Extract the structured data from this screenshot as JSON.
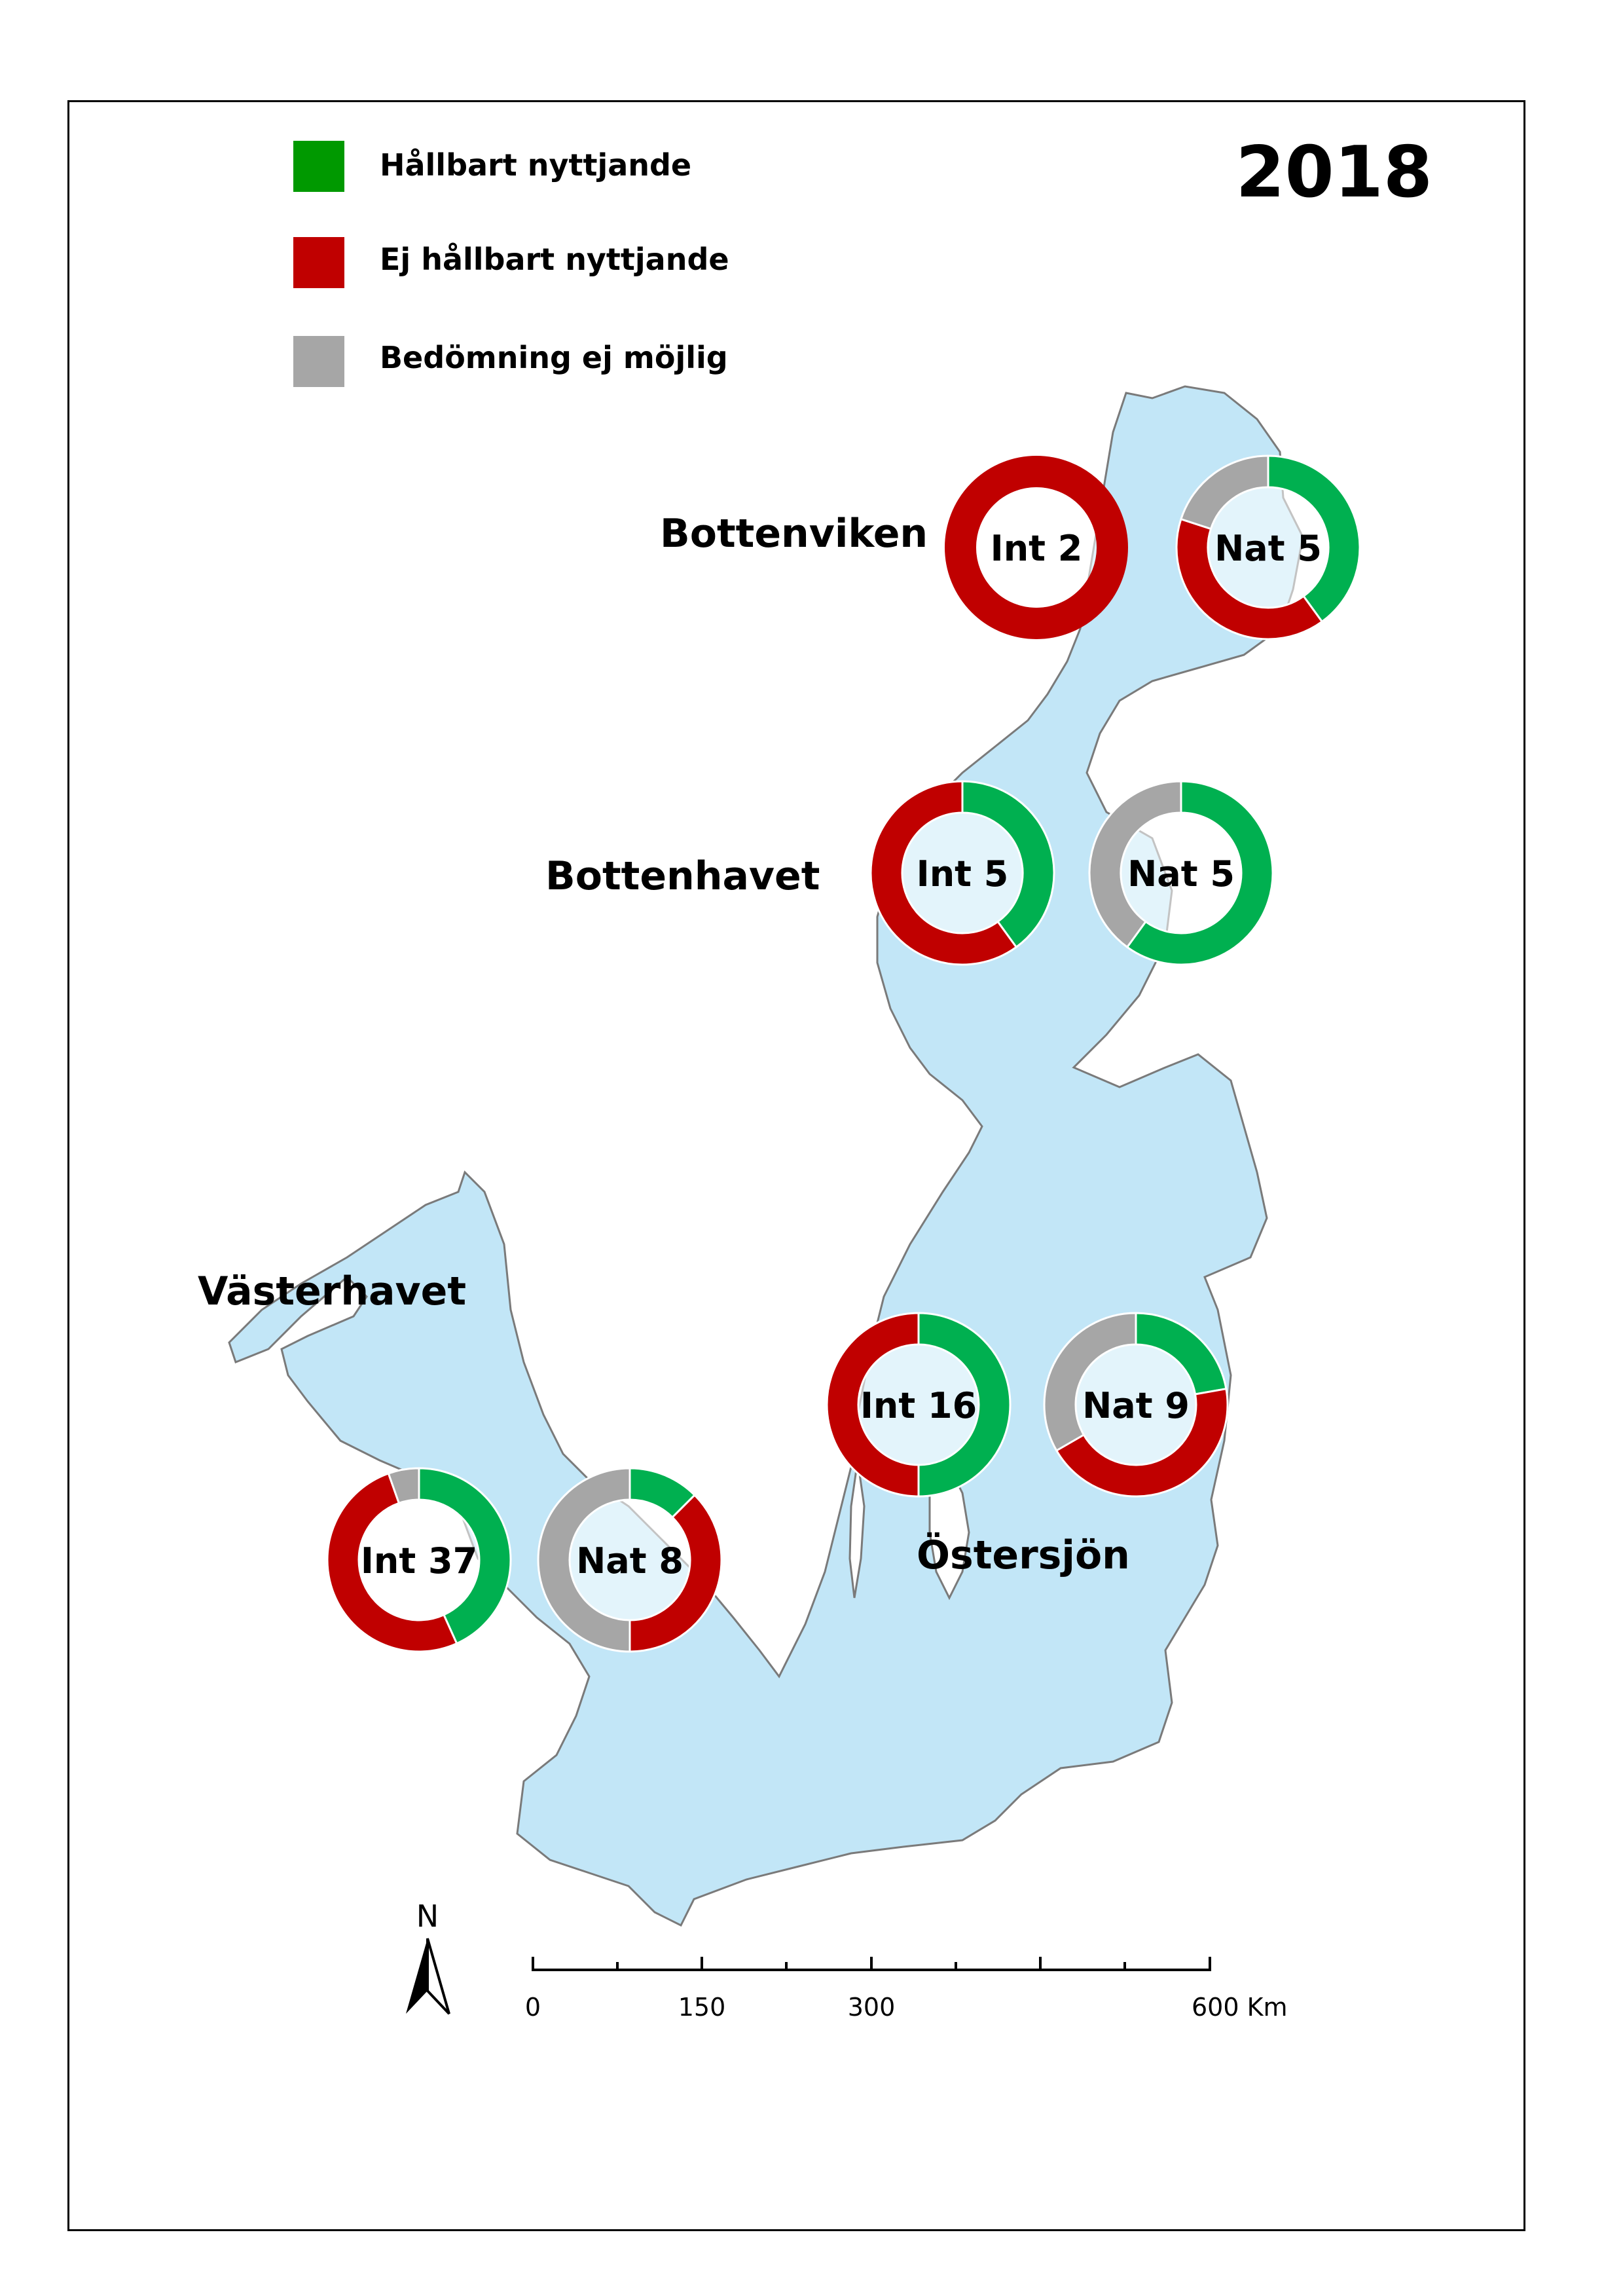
{
  "year": "2018",
  "colors": {
    "sea": "#c2e6f7",
    "coast": "#7a7a7a",
    "sustainable": "#00b050",
    "unsustainable": "#c00000",
    "not_assessed": "#a6a6a6",
    "legend_sustainable": "#009900"
  },
  "legend": [
    {
      "label": "Hållbart nyttjande",
      "color_key": "legend_sustainable"
    },
    {
      "label": "Ej hållbart nyttjande",
      "color_key": "unsustainable"
    },
    {
      "label": "Bedömning ej möjlig",
      "color_key": "not_assessed"
    }
  ],
  "regions": [
    {
      "name": "Bottenviken"
    },
    {
      "name": "Bottenhavet"
    },
    {
      "name": "Västerhavet"
    },
    {
      "name": "Östersjön"
    }
  ],
  "chart_data": [
    {
      "type": "pie",
      "label": "Int 2",
      "region": "Bottenviken",
      "values": {
        "sustainable": 0,
        "unsustainable": 2,
        "not_assessed": 0
      }
    },
    {
      "type": "pie",
      "label": "Nat 5",
      "region": "Bottenviken",
      "values": {
        "sustainable": 2,
        "unsustainable": 2,
        "not_assessed": 1
      }
    },
    {
      "type": "pie",
      "label": "Int 5",
      "region": "Bottenhavet",
      "values": {
        "sustainable": 2,
        "unsustainable": 3,
        "not_assessed": 0
      }
    },
    {
      "type": "pie",
      "label": "Nat 5",
      "region": "Bottenhavet",
      "values": {
        "sustainable": 3,
        "unsustainable": 0,
        "not_assessed": 2
      }
    },
    {
      "type": "pie",
      "label": "Int 16",
      "region": "Östersjön",
      "values": {
        "sustainable": 8,
        "unsustainable": 8,
        "not_assessed": 0
      }
    },
    {
      "type": "pie",
      "label": "Nat 9",
      "region": "Östersjön",
      "values": {
        "sustainable": 2,
        "unsustainable": 4,
        "not_assessed": 3
      }
    },
    {
      "type": "pie",
      "label": "Int 37",
      "region": "Västerhavet",
      "values": {
        "sustainable": 16,
        "unsustainable": 19,
        "not_assessed": 2
      }
    },
    {
      "type": "pie",
      "label": "Nat 8",
      "region": "Västerhavet",
      "values": {
        "sustainable": 1,
        "unsustainable": 3,
        "not_assessed": 4
      }
    }
  ],
  "scale_bar": {
    "ticks": [
      "0",
      "150",
      "300",
      "600 Km"
    ]
  },
  "north_arrow": {
    "label": "N",
    "icon": "north-arrow-icon"
  }
}
